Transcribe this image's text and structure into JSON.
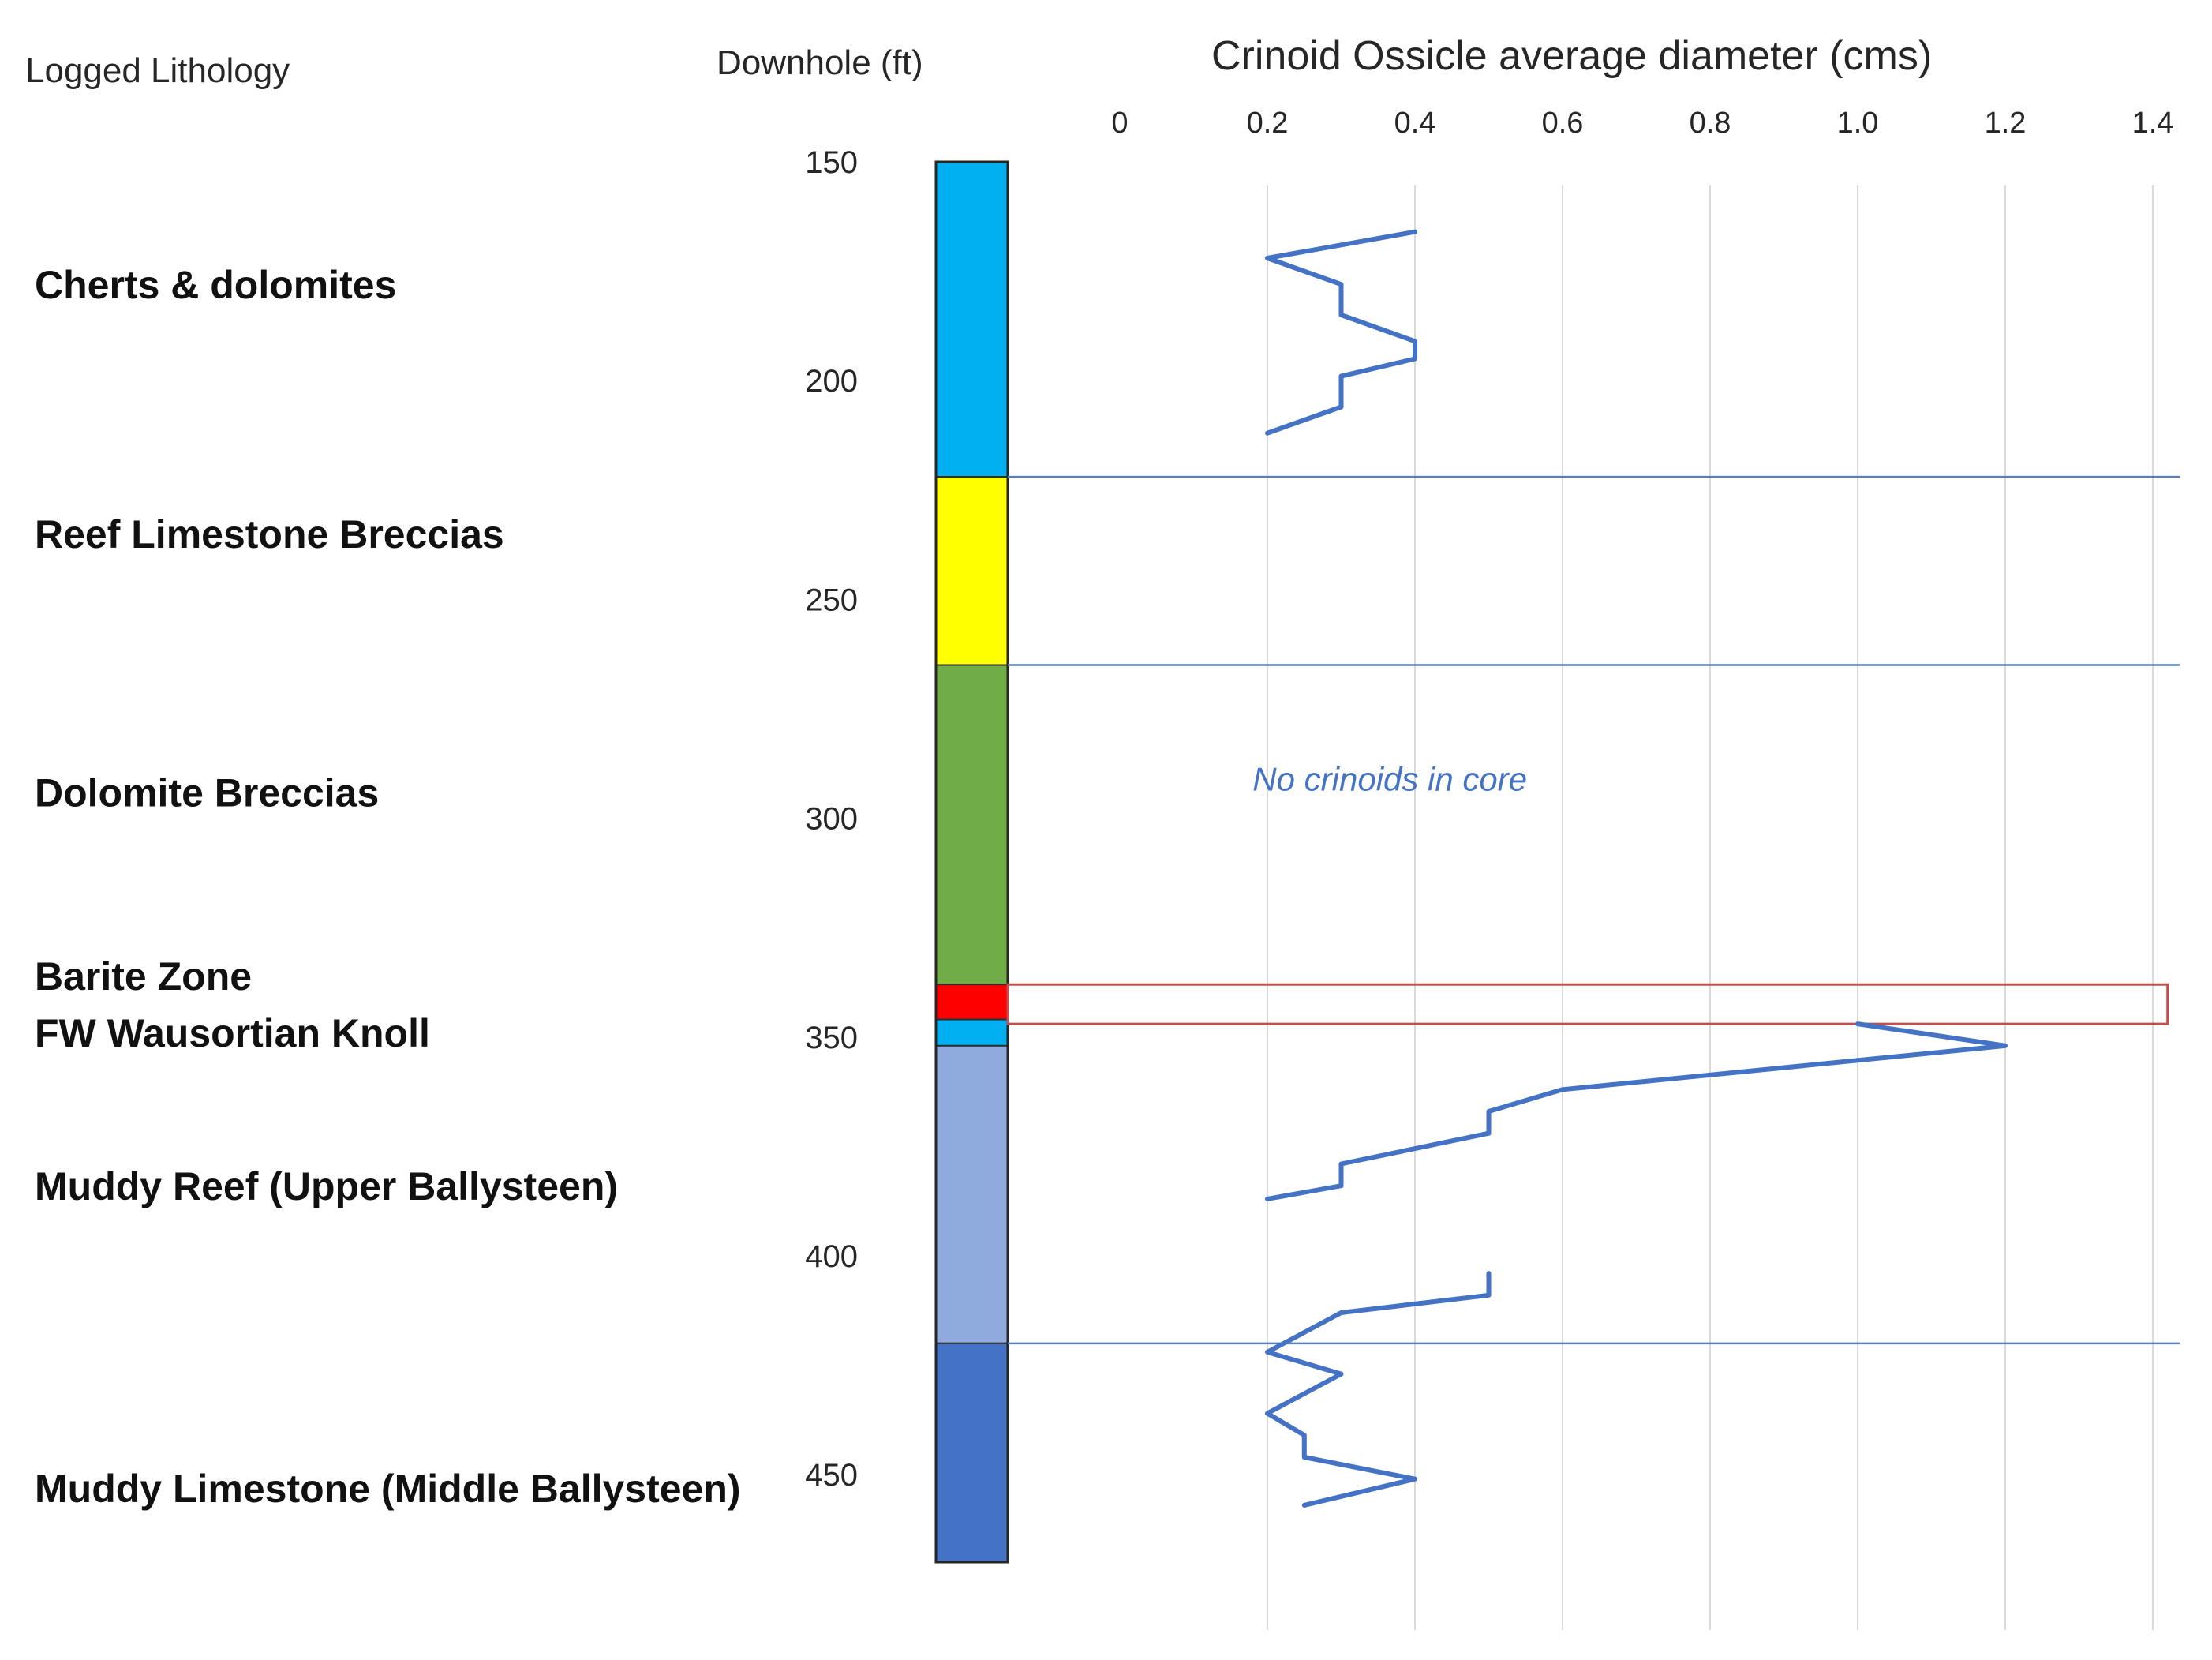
{
  "headers": {
    "lithology": "Logged Lithology",
    "depth": "Downhole  (ft)"
  },
  "chart_data": {
    "type": "line",
    "title": "Crinoid Ossicle average diameter  (cms)",
    "xlabel": "Crinoid Ossicle average diameter  (cms)",
    "ylabel": "Downhole  (ft)",
    "x_ticks": [
      "0",
      "0.2",
      "0.4",
      "0.6",
      "0.8",
      "1.0",
      "1.2",
      "1.4"
    ],
    "x_tick_values": [
      0,
      0.2,
      0.4,
      0.6,
      0.8,
      1.0,
      1.2,
      1.4
    ],
    "y_ticks": [
      "150",
      "200",
      "250",
      "300",
      "350",
      "400",
      "450"
    ],
    "y_tick_values": [
      150,
      200,
      250,
      300,
      350,
      400,
      450
    ],
    "xlim": [
      0,
      1.4
    ],
    "ylim": [
      150,
      470
    ],
    "y_inverted": true,
    "x_axis_position": "top",
    "vertical_grid": true,
    "line_color": "#4472c4",
    "series": [
      {
        "points": [
          {
            "x": 0.4,
            "y": 166
          },
          {
            "x": 0.2,
            "y": 172
          },
          {
            "x": 0.3,
            "y": 178
          },
          {
            "x": 0.3,
            "y": 185
          },
          {
            "x": 0.4,
            "y": 191
          },
          {
            "x": 0.4,
            "y": 195
          },
          {
            "x": 0.3,
            "y": 199
          },
          {
            "x": 0.3,
            "y": 206
          },
          {
            "x": 0.2,
            "y": 212
          }
        ]
      },
      {
        "points": [
          {
            "x": 1.0,
            "y": 347
          },
          {
            "x": 1.2,
            "y": 352
          },
          {
            "x": 0.6,
            "y": 362
          },
          {
            "x": 0.5,
            "y": 367
          },
          {
            "x": 0.5,
            "y": 372
          },
          {
            "x": 0.3,
            "y": 379
          },
          {
            "x": 0.3,
            "y": 384
          },
          {
            "x": 0.2,
            "y": 387
          }
        ]
      },
      {
        "points": [
          {
            "x": 0.5,
            "y": 404
          },
          {
            "x": 0.5,
            "y": 409
          },
          {
            "x": 0.3,
            "y": 413
          },
          {
            "x": 0.2,
            "y": 422
          },
          {
            "x": 0.3,
            "y": 427
          },
          {
            "x": 0.2,
            "y": 436
          },
          {
            "x": 0.25,
            "y": 441
          },
          {
            "x": 0.25,
            "y": 446
          },
          {
            "x": 0.4,
            "y": 451
          },
          {
            "x": 0.25,
            "y": 457
          }
        ]
      }
    ],
    "boundaries": [
      222,
      265,
      420
    ],
    "barite_box": {
      "y_top": 338,
      "y_bottom": 347,
      "x_max": 1.42,
      "color": "#c0504d"
    },
    "annotation": {
      "text": "No crinoids in core",
      "x": 0.18,
      "y": 291,
      "color": "#4472c4"
    }
  },
  "units": [
    {
      "label": "Cherts & dolomites",
      "color": "#000000",
      "fill": "#00b0f0",
      "top": 150,
      "bottom": 222,
      "label_y": 178
    },
    {
      "label": "Reef Limestone Breccias",
      "color": "#000000",
      "fill": "#ffff00",
      "top": 222,
      "bottom": 265,
      "label_y": 235
    },
    {
      "label": "Dolomite Breccias",
      "color": "#000000",
      "fill": "#70ad47",
      "top": 265,
      "bottom": 338,
      "label_y": 294
    },
    {
      "label": "Barite Zone",
      "color": "#e11d1d",
      "fill": "#ff0000",
      "top": 338,
      "bottom": 346,
      "label_y": 336
    },
    {
      "label": "FW Wausortian Knoll",
      "color": "#000000",
      "fill": "#00b0f0",
      "top": 346,
      "bottom": 352,
      "label_y": 349
    },
    {
      "label": "Muddy Reef  (Upper Ballysteen)",
      "color": "#000000",
      "fill": "#8faadc",
      "top": 352,
      "bottom": 420,
      "label_y": 384
    },
    {
      "label": "Muddy Limestone  (Middle Ballysteen)",
      "color": "#000000",
      "fill": "#4472c4",
      "top": 420,
      "bottom": 470,
      "label_y": 453
    }
  ]
}
